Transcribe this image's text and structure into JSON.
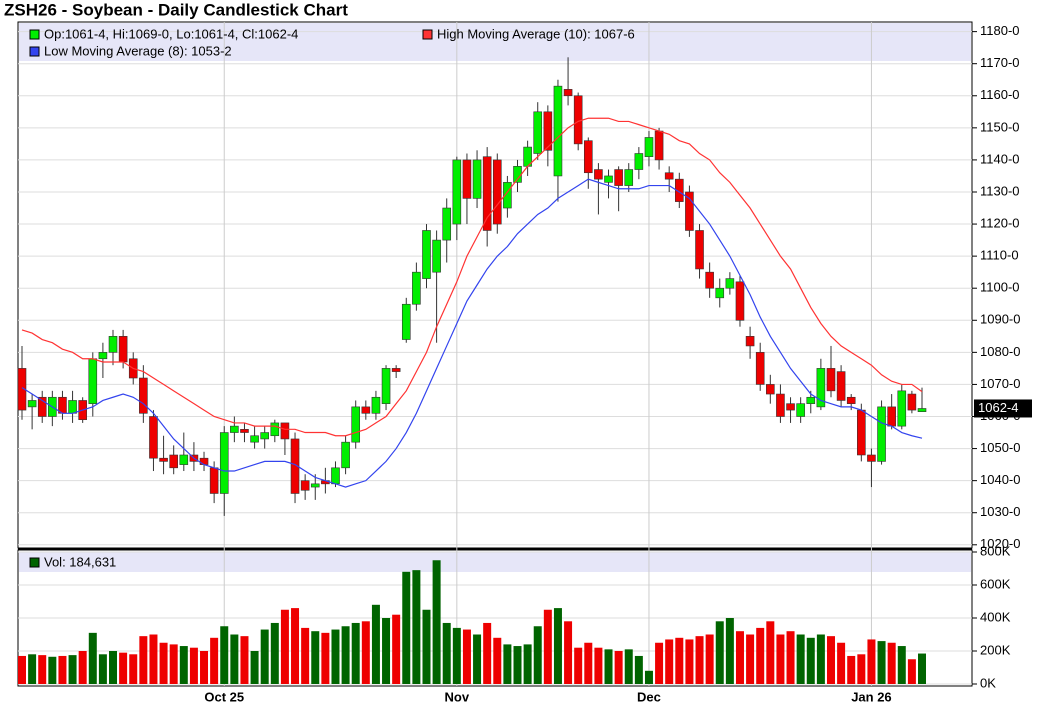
{
  "chart_data": [
    {
      "type": "candlestick",
      "title": "ZSH26 - Soybean - Daily Candlestick Chart",
      "ohlc_label": "Op:1061-4, Hi:1069-0, Lo:1061-4, Cl:1062-4",
      "last_label": "1062-4",
      "up_color": "#00ee00",
      "down_color": "#ee0000",
      "categories": [
        null,
        null,
        null,
        null,
        null,
        null,
        null,
        null,
        null,
        null,
        null,
        null,
        null,
        null,
        null,
        null,
        null,
        null,
        null,
        null,
        "Oct 25",
        null,
        null,
        null,
        null,
        null,
        null,
        null,
        null,
        null,
        null,
        null,
        null,
        null,
        null,
        null,
        null,
        null,
        null,
        null,
        null,
        null,
        null,
        "Nov",
        null,
        null,
        null,
        null,
        null,
        null,
        null,
        null,
        null,
        null,
        null,
        null,
        null,
        null,
        null,
        null,
        null,
        null,
        "Dec",
        null,
        null,
        null,
        null,
        null,
        null,
        null,
        null,
        null,
        null,
        null,
        null,
        null,
        null,
        null,
        null,
        null,
        null,
        null,
        null,
        null,
        "Jan 26",
        null,
        null,
        null,
        null,
        null
      ],
      "open": [
        1075,
        1063,
        1066,
        1060,
        1066,
        1061,
        1065,
        1064,
        1078,
        1080,
        1085,
        1078,
        1072,
        1060,
        1047,
        1048,
        1045,
        1048,
        1047,
        1044,
        1036,
        1055,
        1056,
        1052,
        1053,
        1054,
        1058,
        1053,
        1040,
        1038,
        1040,
        1039,
        1044,
        1052,
        1063,
        1061,
        1064,
        1075,
        1084,
        1095,
        1103,
        1105,
        1115,
        1120,
        1140,
        1128,
        1141,
        1140,
        1125,
        1133,
        1138,
        1142,
        1155,
        1135,
        1162,
        1160,
        1146,
        1137,
        1133,
        1137,
        1132,
        1137,
        1141,
        1149,
        1136,
        1134,
        1130,
        1118,
        1105,
        1097,
        1100,
        1102,
        1085,
        1080,
        1070,
        1067,
        1064,
        1060,
        1064,
        1063,
        1075,
        1074,
        1066,
        1062,
        1048,
        1046,
        1063,
        1057,
        1067,
        1061.5
      ],
      "high": [
        1082,
        1067,
        1068,
        1068,
        1068,
        1068,
        1066,
        1080,
        1083,
        1087,
        1087,
        1080,
        1076,
        1062,
        1054,
        1051,
        1055,
        1052,
        1049,
        1046,
        1057,
        1060,
        1058,
        1057,
        1057,
        1059,
        1058,
        1055,
        1042,
        1042,
        1044,
        1046,
        1054,
        1065,
        1065,
        1068,
        1076,
        1076,
        1097,
        1108,
        1120,
        1118,
        1128,
        1141,
        1142,
        1143,
        1144,
        1142,
        1135,
        1140,
        1146,
        1158,
        1157,
        1165,
        1172,
        1161,
        1147,
        1139,
        1137,
        1138,
        1139,
        1144,
        1149,
        1150,
        1138,
        1136,
        1132,
        1120,
        1108,
        1103,
        1105,
        1104,
        1088,
        1083,
        1073,
        1070,
        1066,
        1066,
        1068,
        1078,
        1082,
        1076,
        1067,
        1064,
        1050,
        1065,
        1067,
        1070,
        1068,
        1069
      ],
      "low": [
        1059,
        1056,
        1058,
        1057,
        1059,
        1058,
        1058,
        1060,
        1072,
        1076,
        1075,
        1070,
        1058,
        1043,
        1042,
        1042,
        1043,
        1043,
        1043,
        1033,
        1029,
        1052,
        1052,
        1050,
        1050,
        1052,
        1048,
        1033,
        1034,
        1034,
        1036,
        1038,
        1042,
        1050,
        1059,
        1059,
        1062,
        1072,
        1083,
        1093,
        1100,
        1083,
        1108,
        1115,
        1120,
        1125,
        1113,
        1117,
        1122,
        1130,
        1135,
        1140,
        1138,
        1127,
        1157,
        1143,
        1131,
        1123,
        1128,
        1124,
        1130,
        1134,
        1138,
        1137,
        1130,
        1125,
        1116,
        1103,
        1097,
        1094,
        1098,
        1088,
        1078,
        1068,
        1064,
        1058,
        1058,
        1058,
        1061,
        1062,
        1066,
        1063,
        1062,
        1046,
        1038,
        1045,
        1056,
        1056,
        1061,
        1061.5
      ],
      "close": [
        1062,
        1065,
        1060,
        1066,
        1061,
        1065,
        1059,
        1078,
        1080,
        1085,
        1077,
        1072,
        1061,
        1047,
        1046,
        1044,
        1048,
        1046,
        1045,
        1036,
        1055,
        1057,
        1055,
        1054,
        1055,
        1058,
        1053,
        1036,
        1037,
        1039,
        1039,
        1044,
        1052,
        1063,
        1061,
        1066,
        1075,
        1074,
        1095,
        1105,
        1118,
        1115,
        1125,
        1140,
        1128,
        1140,
        1118,
        1120,
        1133,
        1138,
        1144,
        1155,
        1143,
        1163,
        1160,
        1145,
        1136,
        1134,
        1135,
        1132,
        1137,
        1142,
        1147,
        1140,
        1134,
        1127,
        1118,
        1106,
        1100,
        1100,
        1103,
        1090,
        1082,
        1070,
        1067,
        1060,
        1062,
        1064,
        1066,
        1075,
        1068,
        1065,
        1064,
        1048,
        1046,
        1063,
        1057,
        1068,
        1062,
        1062.5
      ],
      "series": [
        {
          "name": "High Moving Average (10): 1067-6",
          "color": "#ff3333",
          "values": [
            1087,
            1086,
            1084,
            1083,
            1081,
            1080,
            1078,
            1078,
            1077,
            1077,
            1077,
            1075,
            1074,
            1072,
            1070,
            1068,
            1066,
            1064,
            1062,
            1060,
            1059,
            1058,
            1058,
            1057,
            1057,
            1057,
            1056,
            1056,
            1055,
            1055,
            1055,
            1054,
            1054,
            1055,
            1056,
            1058,
            1060,
            1064,
            1068,
            1074,
            1080,
            1088,
            1095,
            1102,
            1110,
            1116,
            1122,
            1126,
            1130,
            1134,
            1138,
            1141,
            1144,
            1147,
            1150,
            1152,
            1153,
            1153,
            1153,
            1152,
            1152,
            1151,
            1150,
            1149,
            1148,
            1146,
            1145,
            1142,
            1140,
            1136,
            1133,
            1129,
            1125,
            1120,
            1115,
            1110,
            1106,
            1100,
            1094,
            1089,
            1085,
            1082,
            1080,
            1078,
            1076,
            1073,
            1071,
            1070,
            1070,
            1067.75
          ]
        },
        {
          "name": "Low Moving Average (8): 1053-2",
          "color": "#3344ee",
          "values": [
            1069,
            1067,
            1065,
            1063,
            1061,
            1061,
            1062,
            1063,
            1065,
            1066,
            1067,
            1066,
            1064,
            1061,
            1057,
            1053,
            1050,
            1047,
            1045,
            1044,
            1043,
            1043,
            1044,
            1045,
            1046,
            1046,
            1046,
            1045,
            1043,
            1041,
            1040,
            1039,
            1038,
            1039,
            1040,
            1043,
            1046,
            1050,
            1055,
            1061,
            1068,
            1075,
            1082,
            1089,
            1096,
            1101,
            1106,
            1110,
            1113,
            1117,
            1120,
            1123,
            1125,
            1128,
            1130,
            1132,
            1134,
            1133,
            1132,
            1131,
            1131,
            1131,
            1132,
            1132,
            1132,
            1130,
            1128,
            1124,
            1120,
            1115,
            1110,
            1104,
            1098,
            1091,
            1085,
            1080,
            1075,
            1071,
            1067,
            1065,
            1064,
            1063,
            1063,
            1062,
            1060,
            1058,
            1057,
            1055,
            1054,
            1053.25
          ]
        }
      ],
      "ylim": [
        1019,
        1183
      ],
      "yticks": [
        {
          "value": 1020,
          "label": "1020-0"
        },
        {
          "value": 1030,
          "label": "1030-0"
        },
        {
          "value": 1040,
          "label": "1040-0"
        },
        {
          "value": 1050,
          "label": "1050-0"
        },
        {
          "value": 1060,
          "label": "1060-0"
        },
        {
          "value": 1070,
          "label": "1070-0"
        },
        {
          "value": 1080,
          "label": "1080-0"
        },
        {
          "value": 1090,
          "label": "1090-0"
        },
        {
          "value": 1100,
          "label": "1100-0"
        },
        {
          "value": 1110,
          "label": "1110-0"
        },
        {
          "value": 1120,
          "label": "1120-0"
        },
        {
          "value": 1130,
          "label": "1130-0"
        },
        {
          "value": 1140,
          "label": "1140-0"
        },
        {
          "value": 1150,
          "label": "1150-0"
        },
        {
          "value": 1160,
          "label": "1160-0"
        },
        {
          "value": 1170,
          "label": "1170-0"
        },
        {
          "value": 1180,
          "label": "1180-0"
        }
      ],
      "grid": true
    },
    {
      "type": "bar",
      "legend": "Vol: 184,631",
      "color": "#006400",
      "values": [
        170000,
        180000,
        175000,
        165000,
        170000,
        175000,
        200000,
        310000,
        180000,
        200000,
        190000,
        180000,
        290000,
        300000,
        250000,
        240000,
        230000,
        220000,
        200000,
        280000,
        350000,
        300000,
        290000,
        200000,
        330000,
        370000,
        450000,
        460000,
        340000,
        320000,
        310000,
        330000,
        350000,
        370000,
        380000,
        480000,
        400000,
        420000,
        680000,
        690000,
        450000,
        750000,
        370000,
        340000,
        330000,
        300000,
        370000,
        280000,
        240000,
        230000,
        240000,
        350000,
        450000,
        460000,
        380000,
        220000,
        250000,
        220000,
        210000,
        200000,
        210000,
        170000,
        80000,
        250000,
        270000,
        280000,
        270000,
        290000,
        300000,
        380000,
        400000,
        320000,
        300000,
        340000,
        380000,
        300000,
        320000,
        300000,
        280000,
        300000,
        290000,
        250000,
        170000,
        180000,
        270000,
        260000,
        250000,
        230000,
        150000,
        184631
      ],
      "ylim": [
        0,
        800000
      ],
      "yticks": [
        {
          "value": 0,
          "label": "0K"
        },
        {
          "value": 200000,
          "label": "200K"
        },
        {
          "value": 400000,
          "label": "400K"
        },
        {
          "value": 600000,
          "label": "600K"
        },
        {
          "value": 800000,
          "label": "800K"
        }
      ],
      "grid": true
    }
  ]
}
